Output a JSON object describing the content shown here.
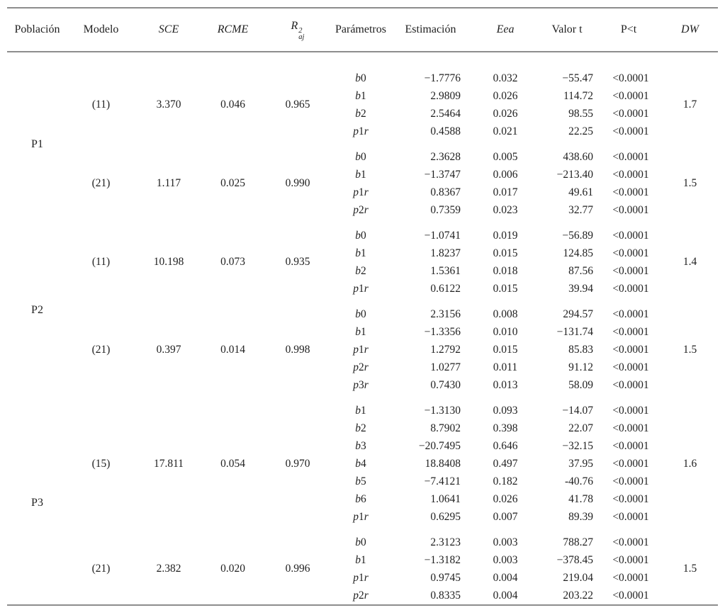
{
  "table": {
    "header": {
      "poblacion": "Población",
      "modelo": "Modelo",
      "sce": "SCE",
      "rcme": "RCME",
      "r2aj_base": "R",
      "r2aj_sup": "2",
      "r2aj_sub": "aj",
      "parametros": "Parámetros",
      "estimacion": "Estimación",
      "eea": "Eea",
      "valor_t": "Valor t",
      "p_lt_t": "P<t",
      "dw": "DW"
    },
    "populations": [
      {
        "name": "P1",
        "models": [
          {
            "modelo": "(11)",
            "sce": "3.370",
            "rcme": "0.046",
            "r2aj": "0.965",
            "dw": "1.7",
            "rows": [
              {
                "param": "b0",
                "est": "−1.7776",
                "eea": "0.032",
                "t": "−55.47",
                "p": "<0.0001"
              },
              {
                "param": "b1",
                "est": "2.9809",
                "eea": "0.026",
                "t": "114.72",
                "p": "<0.0001"
              },
              {
                "param": "b2",
                "est": "2.5464",
                "eea": "0.026",
                "t": "98.55",
                "p": "<0.0001"
              },
              {
                "param": "p1r",
                "est": "0.4588",
                "eea": "0.021",
                "t": "22.25",
                "p": "<0.0001"
              }
            ]
          },
          {
            "modelo": "(21)",
            "sce": "1.117",
            "rcme": "0.025",
            "r2aj": "0.990",
            "dw": "1.5",
            "rows": [
              {
                "param": "b0",
                "est": "2.3628",
                "eea": "0.005",
                "t": "438.60",
                "p": "<0.0001"
              },
              {
                "param": "b1",
                "est": "−1.3747",
                "eea": "0.006",
                "t": "−213.40",
                "p": "<0.0001"
              },
              {
                "param": "p1r",
                "est": "0.8367",
                "eea": "0.017",
                "t": "49.61",
                "p": "<0.0001"
              },
              {
                "param": "p2r",
                "est": "0.7359",
                "eea": "0.023",
                "t": "32.77",
                "p": "<0.0001"
              }
            ]
          }
        ]
      },
      {
        "name": "P2",
        "models": [
          {
            "modelo": "(11)",
            "sce": "10.198",
            "rcme": "0.073",
            "r2aj": "0.935",
            "dw": "1.4",
            "rows": [
              {
                "param": "b0",
                "est": "−1.0741",
                "eea": "0.019",
                "t": "−56.89",
                "p": "<0.0001"
              },
              {
                "param": "b1",
                "est": "1.8237",
                "eea": "0.015",
                "t": "124.85",
                "p": "<0.0001"
              },
              {
                "param": "b2",
                "est": "1.5361",
                "eea": "0.018",
                "t": "87.56",
                "p": "<0.0001"
              },
              {
                "param": "p1r",
                "est": "0.6122",
                "eea": "0.015",
                "t": "39.94",
                "p": "<0.0001"
              }
            ]
          },
          {
            "modelo": "(21)",
            "sce": "0.397",
            "rcme": "0.014",
            "r2aj": "0.998",
            "dw": "1.5",
            "rows": [
              {
                "param": "b0",
                "est": "2.3156",
                "eea": "0.008",
                "t": "294.57",
                "p": "<0.0001"
              },
              {
                "param": "b1",
                "est": "−1.3356",
                "eea": "0.010",
                "t": "−131.74",
                "p": "<0.0001"
              },
              {
                "param": "p1r",
                "est": "1.2792",
                "eea": "0.015",
                "t": "85.83",
                "p": "<0.0001"
              },
              {
                "param": "p2r",
                "est": "1.0277",
                "eea": "0.011",
                "t": "91.12",
                "p": "<0.0001"
              },
              {
                "param": "p3r",
                "est": "0.7430",
                "eea": "0.013",
                "t": "58.09",
                "p": "<0.0001"
              }
            ]
          }
        ]
      },
      {
        "name": "P3",
        "models": [
          {
            "modelo": "(15)",
            "sce": "17.811",
            "rcme": "0.054",
            "r2aj": "0.970",
            "dw": "1.6",
            "rows": [
              {
                "param": "b1",
                "est": "−1.3130",
                "eea": "0.093",
                "t": "−14.07",
                "p": "<0.0001"
              },
              {
                "param": "b2",
                "est": "8.7902",
                "eea": "0.398",
                "t": "22.07",
                "p": "<0.0001"
              },
              {
                "param": "b3",
                "est": "−20.7495",
                "eea": "0.646",
                "t": "−32.15",
                "p": "<0.0001"
              },
              {
                "param": "b4",
                "est": "18.8408",
                "eea": "0.497",
                "t": "37.95",
                "p": "<0.0001"
              },
              {
                "param": "b5",
                "est": "−7.4121",
                "eea": "0.182",
                "t": "-40.76",
                "p": "<0.0001"
              },
              {
                "param": "b6",
                "est": "1.0641",
                "eea": "0.026",
                "t": "41.78",
                "p": "<0.0001"
              },
              {
                "param": "p1r",
                "est": "0.6295",
                "eea": "0.007",
                "t": "89.39",
                "p": "<0.0001"
              }
            ]
          },
          {
            "modelo": "(21)",
            "sce": "2.382",
            "rcme": "0.020",
            "r2aj": "0.996",
            "dw": "1.5",
            "rows": [
              {
                "param": "b0",
                "est": "2.3123",
                "eea": "0.003",
                "t": "788.27",
                "p": "<0.0001"
              },
              {
                "param": "b1",
                "est": "−1.3182",
                "eea": "0.003",
                "t": "−378.45",
                "p": "<0.0001"
              },
              {
                "param": "p1r",
                "est": "0.9745",
                "eea": "0.004",
                "t": "219.04",
                "p": "<0.0001"
              },
              {
                "param": "p2r",
                "est": "0.8335",
                "eea": "0.004",
                "t": "203.22",
                "p": "<0.0001"
              }
            ]
          }
        ]
      }
    ]
  }
}
